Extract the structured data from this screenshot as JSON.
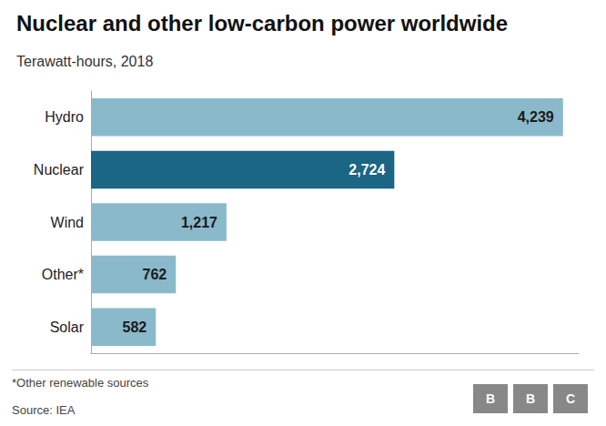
{
  "chart_data": {
    "type": "bar",
    "orientation": "horizontal",
    "title": "Nuclear and other low-carbon power worldwide",
    "subtitle": "Terawatt-hours, 2018",
    "categories": [
      "Solar",
      "Other*",
      "Wind",
      "Nuclear",
      "Hydro"
    ],
    "values": [
      582,
      762,
      1217,
      2724,
      4239
    ],
    "value_labels": [
      "582",
      "762",
      "1,217",
      "2,724",
      "4,239"
    ],
    "colors": [
      "#8ab9cb",
      "#8ab9cb",
      "#8ab9cb",
      "#1b6585",
      "#8ab9cb"
    ],
    "data_labels": true,
    "xlim": [
      0,
      4380
    ],
    "tick_labels": "y",
    "grid": false,
    "annotations": [
      "*Other renewable sources",
      "Source: IEA",
      "BBC"
    ]
  }
}
